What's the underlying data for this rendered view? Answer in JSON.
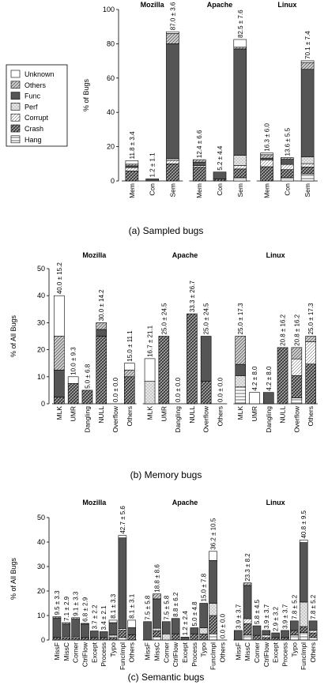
{
  "chart_data": [
    {
      "type": "bar",
      "stacked": true,
      "caption": "(a) Sampled bugs",
      "ylabel": "% of Bugs",
      "ylim": [
        0,
        100
      ],
      "yticks": [
        0,
        20,
        40,
        60,
        80,
        100
      ],
      "legend": [
        "Unknown",
        "Others",
        "Func",
        "Perf",
        "Corrupt",
        "Crash",
        "Hang"
      ],
      "colors": [
        "#ffffff",
        "#c8c8c8",
        "#555555",
        "#e6e6e6",
        "#ffffff",
        "#a0a0a0",
        "#ffffff"
      ],
      "groups": [
        {
          "name": "Mozilla",
          "categories": [
            "Mem",
            "Con",
            "Sem"
          ],
          "values": [
            [
              2,
              1,
              1,
              0,
              2,
              5.8,
              0
            ],
            [
              0,
              0,
              1.2,
              0,
              0,
              0,
              0
            ],
            [
              1,
              6,
              67,
              1,
              2,
              10,
              0
            ]
          ],
          "labels": [
            "11.8 ± 3.4",
            "1.2 ± 1.1",
            "87.0 ± 3.6"
          ]
        },
        {
          "name": "Apache",
          "categories": [
            "Mem",
            "Con",
            "Sem"
          ],
          "values": [
            [
              0,
              1.4,
              2,
              0,
              1,
              8,
              0
            ],
            [
              0,
              0,
              4,
              0,
              0,
              1.2,
              0
            ],
            [
              4.5,
              1,
              62,
              6,
              2,
              5,
              2
            ]
          ],
          "labels": [
            "12.4 ± 6.6",
            "5.2 ± 4.4",
            "82.5 ± 7.6"
          ]
        },
        {
          "name": "Linux",
          "categories": [
            "Mem",
            "Con",
            "Sem"
          ],
          "values": [
            [
              1,
              2,
              1,
              0,
              4,
              8.3,
              0
            ],
            [
              0,
              1,
              3,
              0,
              3,
              4.6,
              2
            ],
            [
              1,
              4,
              51,
              4,
              2,
              4,
              4.1
            ]
          ],
          "labels": [
            "16.3 ± 6.0",
            "13.6 ± 5.5",
            "70.1 ± 7.4"
          ]
        }
      ]
    },
    {
      "type": "bar",
      "stacked": true,
      "caption": "(b) Memory bugs",
      "ylabel": "% of All Bugs",
      "ylim": [
        0,
        50
      ],
      "yticks": [
        0,
        10,
        20,
        30,
        40,
        50
      ],
      "colors": [
        "#ffffff",
        "#c8c8c8",
        "#555555",
        "#e6e6e6",
        "#ffffff",
        "#a0a0a0",
        "#ffffff"
      ],
      "groups": [
        {
          "name": "Mozilla",
          "categories": [
            "MLK",
            "UMR",
            "Dangling",
            "NULL",
            "Overflow",
            "Others"
          ],
          "values": [
            [
              15,
              12.5,
              10,
              0,
              0,
              2.5,
              0
            ],
            [
              2.5,
              0,
              0,
              0,
              0,
              7.5,
              0
            ],
            [
              0,
              0,
              0,
              0,
              0,
              5,
              0
            ],
            [
              0,
              2.5,
              2.5,
              0,
              0,
              25,
              0
            ],
            [
              0,
              0,
              0,
              0,
              0,
              0,
              0
            ],
            [
              2.5,
              2.5,
              0,
              0,
              0,
              10,
              0
            ]
          ],
          "labels": [
            "40.0 ± 15.2",
            "10.0 ± 9.3",
            "5.0 ± 6.8",
            "30.0 ± 14.2",
            "0.0 ± 0.0",
            "15.0 ± 11.1"
          ]
        },
        {
          "name": "Apache",
          "categories": [
            "MLK",
            "UMR",
            "Dangling",
            "NULL",
            "Overflow",
            "Others"
          ],
          "values": [
            [
              8.4,
              0,
              0,
              8.3,
              0,
              0,
              0
            ],
            [
              0,
              0,
              0,
              0,
              0,
              25,
              0
            ],
            [
              0,
              0,
              0,
              0,
              0,
              0,
              0
            ],
            [
              0,
              0,
              0,
              0,
              0,
              33.3,
              0
            ],
            [
              0,
              0,
              16.7,
              0,
              0,
              8.3,
              0
            ],
            [
              0,
              0,
              0,
              0,
              0,
              0,
              0
            ]
          ],
          "labels": [
            "16.7 ± 21.1",
            "25.0 ± 24.5",
            "0.0 ± 0.0",
            "33.3 ± 26.7",
            "25.0 ± 24.5",
            "0.0 ± 0.0"
          ]
        },
        {
          "name": "Linux",
          "categories": [
            "MLK",
            "UMR",
            "Dangling",
            "NULL",
            "Overflow",
            "Others"
          ],
          "values": [
            [
              0,
              10.4,
              4.2,
              4.2,
              0,
              0,
              6.2
            ],
            [
              4.2,
              0,
              0,
              0,
              0,
              0,
              0
            ],
            [
              0,
              0,
              4.2,
              0,
              0,
              0,
              0
            ],
            [
              0,
              0,
              0,
              0,
              0,
              20.8,
              0
            ],
            [
              0,
              4.2,
              0,
              0,
              6.2,
              8.2,
              2.2
            ],
            [
              0,
              2,
              0,
              0,
              8.3,
              14.7,
              0
            ]
          ],
          "labels": [
            "25.0 ± 17.3",
            "4.2 ± 8.0",
            "4.2 ± 8.0",
            "20.8 ± 16.2",
            "20.8 ± 16.2",
            "25.0 ± 17.3"
          ]
        }
      ]
    },
    {
      "type": "bar",
      "stacked": true,
      "caption": "(c) Semantic bugs",
      "ylabel": "% of All Bugs",
      "ylim": [
        0,
        50
      ],
      "yticks": [
        0,
        10,
        20,
        30,
        40,
        50
      ],
      "colors": [
        "#ffffff",
        "#c8c8c8",
        "#555555",
        "#e6e6e6",
        "#ffffff",
        "#a0a0a0",
        "#ffffff"
      ],
      "groups": [
        {
          "name": "Mozilla",
          "categories": [
            "MissF",
            "MissC",
            "Corner",
            "CtrlFlow",
            "Except",
            "Process",
            "Typo",
            "FuncImpl",
            "Others"
          ],
          "values": [
            [
              0,
              0.5,
              8,
              0,
              0,
              1,
              0
            ],
            [
              0,
              0.6,
              5,
              0,
              0.5,
              1,
              0
            ],
            [
              0,
              0.6,
              7,
              0,
              0.5,
              1,
              0
            ],
            [
              0,
              0.3,
              5.5,
              0,
              0,
              1,
              0
            ],
            [
              0,
              0,
              2.7,
              0,
              0,
              1,
              0
            ],
            [
              0,
              0,
              2.4,
              0,
              0,
              1,
              0
            ],
            [
              1,
              0,
              5.1,
              1,
              0,
              1,
              0
            ],
            [
              1,
              0,
              37,
              0,
              0.7,
              3,
              1
            ],
            [
              3,
              0,
              3,
              0,
              0,
              2.1,
              0
            ]
          ],
          "labels": [
            "9.5 ± 3.3",
            "7.1 ± 2.9",
            "9.1 ± 3.3",
            "6.8 ± 2.9",
            "3.7 ± 2.2",
            "3.4 ± 2.1",
            "8.1 ± 3.3",
            "42.7 ± 5.6",
            "8.1 ± 3.1"
          ]
        },
        {
          "name": "Apache",
          "categories": [
            "MissF",
            "MissC",
            "Corner",
            "CtrlFlow",
            "Except",
            "Process",
            "Typo",
            "FuncImpl",
            "Others"
          ],
          "values": [
            [
              0,
              0,
              7.5,
              0,
              0,
              0,
              0
            ],
            [
              0,
              2,
              12,
              1,
              0,
              2.5,
              1.3
            ],
            [
              0,
              0,
              5,
              2.5,
              0,
              0,
              0
            ],
            [
              0,
              0,
              6.3,
              0,
              0,
              2.5,
              0
            ],
            [
              0,
              0,
              1.2,
              0,
              0,
              0,
              0
            ],
            [
              0,
              0,
              2.5,
              0,
              0,
              2.5,
              0
            ],
            [
              0,
              0,
              10,
              2.5,
              0,
              2.5,
              0
            ],
            [
              3.7,
              0,
              17.5,
              5,
              0,
              7.5,
              2.5
            ],
            [
              0,
              0,
              0,
              0,
              0,
              0,
              0
            ]
          ],
          "labels": [
            "7.5 ± 5.8",
            "18.8 ± 8.6",
            "7.5 ± 5.8",
            "8.8 ± 6.2",
            "1.2 ± 2.4",
            "5.0 ± 4.8",
            "15.0 ± 7.8",
            "36.2 ± 10.5",
            "0.0 ± 0.0"
          ]
        },
        {
          "name": "Linux",
          "categories": [
            "MissF",
            "MissC",
            "Corner",
            "CtrlFlow",
            "Except",
            "Process",
            "Typo",
            "FuncImpl",
            "Others"
          ],
          "values": [
            [
              0,
              0,
              3.9,
              0,
              0,
              0,
              0
            ],
            [
              0,
              1,
              13.6,
              0,
              2,
              4.7,
              2
            ],
            [
              0,
              0,
              3.9,
              0,
              0,
              1.9,
              0
            ],
            [
              0,
              0,
              1.9,
              0,
              1,
              1,
              0
            ],
            [
              0,
              0,
              1.9,
              0,
              0,
              1,
              0
            ],
            [
              0,
              0,
              2.9,
              0,
              0,
              1,
              0
            ],
            [
              0,
              0,
              3.9,
              0,
              0,
              1.9,
              2
            ],
            [
              1,
              0,
              24.3,
              10,
              0,
              2.5,
              3
            ],
            [
              0,
              0,
              3.9,
              0,
              1,
              1.9,
              1
            ]
          ],
          "labels": [
            "3.9 ± 3.7",
            "23.3 ± 8.2",
            "5.8 ± 4.5",
            "3.9 ± 3.7",
            "2.9 ± 3.2",
            "3.9 ± 3.7",
            "7.8 ± 5.2",
            "40.8 ± 9.5",
            "7.8 ± 5.2"
          ]
        }
      ]
    }
  ]
}
